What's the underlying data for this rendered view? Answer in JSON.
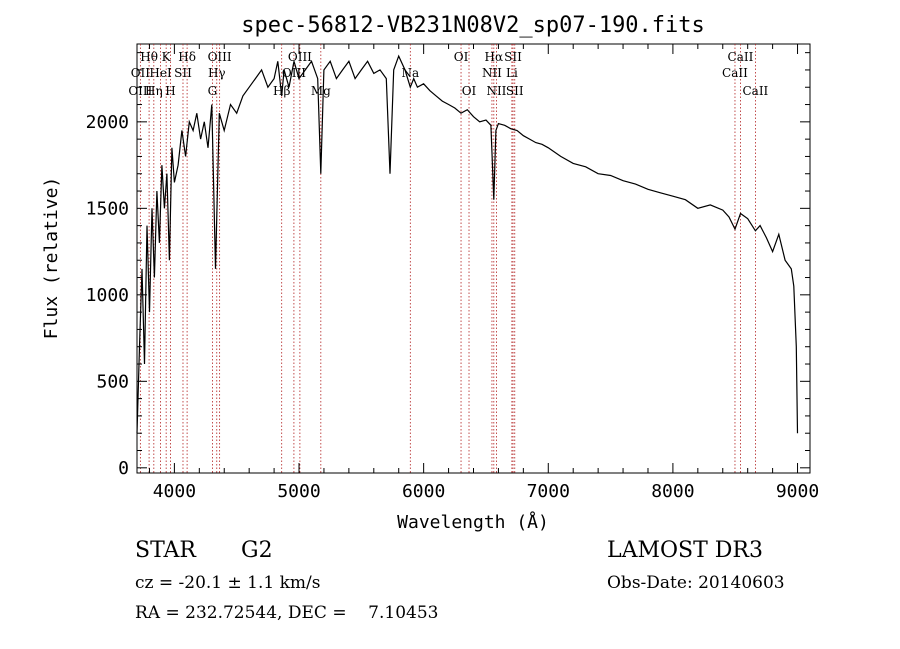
{
  "chart_data": {
    "type": "line",
    "title": "spec-56812-VB231N08V2_sp07-190.fits",
    "xlabel": "Wavelength (Å)",
    "ylabel": "Flux (relative)",
    "xlim": [
      3700,
      9100
    ],
    "ylim": [
      -30,
      2450
    ],
    "x_ticks": [
      4000,
      5000,
      6000,
      7000,
      8000,
      9000
    ],
    "y_ticks": [
      0,
      500,
      1000,
      1500,
      2000
    ],
    "grid": false,
    "series": [
      {
        "name": "flux",
        "x": [
          3700,
          3720,
          3740,
          3760,
          3780,
          3800,
          3820,
          3840,
          3860,
          3880,
          3900,
          3920,
          3940,
          3960,
          3980,
          4000,
          4030,
          4060,
          4090,
          4120,
          4150,
          4180,
          4210,
          4240,
          4270,
          4300,
          4330,
          4360,
          4400,
          4450,
          4500,
          4550,
          4600,
          4650,
          4700,
          4750,
          4800,
          4830,
          4861,
          4880,
          4920,
          4960,
          5000,
          5050,
          5100,
          5150,
          5175,
          5200,
          5250,
          5300,
          5350,
          5400,
          5450,
          5500,
          5550,
          5600,
          5650,
          5700,
          5730,
          5760,
          5800,
          5850,
          5893,
          5920,
          5950,
          6000,
          6050,
          6100,
          6150,
          6200,
          6250,
          6300,
          6350,
          6400,
          6450,
          6500,
          6540,
          6563,
          6580,
          6600,
          6650,
          6700,
          6750,
          6800,
          6850,
          6900,
          6950,
          7000,
          7100,
          7200,
          7300,
          7400,
          7500,
          7600,
          7700,
          7800,
          7900,
          8000,
          8100,
          8200,
          8300,
          8400,
          8450,
          8498,
          8542,
          8600,
          8662,
          8700,
          8750,
          8800,
          8850,
          8900,
          8950,
          8970,
          8990,
          9000
        ],
        "y": [
          200,
          700,
          1150,
          600,
          1400,
          900,
          1500,
          1100,
          1600,
          1300,
          1750,
          1500,
          1700,
          1200,
          1850,
          1650,
          1750,
          1950,
          1800,
          2000,
          1950,
          2050,
          1900,
          2000,
          1850,
          2100,
          1150,
          2050,
          1950,
          2100,
          2050,
          2150,
          2200,
          2250,
          2300,
          2200,
          2250,
          2350,
          2150,
          2300,
          2200,
          2350,
          2250,
          2300,
          2350,
          2250,
          1700,
          2300,
          2350,
          2250,
          2300,
          2350,
          2250,
          2300,
          2350,
          2280,
          2300,
          2250,
          1700,
          2300,
          2380,
          2300,
          2200,
          2250,
          2200,
          2220,
          2180,
          2150,
          2120,
          2100,
          2080,
          2050,
          2070,
          2030,
          2000,
          2010,
          1980,
          1550,
          1950,
          1990,
          1980,
          1960,
          1950,
          1920,
          1900,
          1880,
          1870,
          1850,
          1800,
          1760,
          1740,
          1700,
          1690,
          1660,
          1640,
          1610,
          1590,
          1570,
          1550,
          1500,
          1520,
          1490,
          1450,
          1380,
          1470,
          1440,
          1370,
          1400,
          1330,
          1250,
          1350,
          1200,
          1150,
          1050,
          700,
          200
        ]
      }
    ],
    "annotations": [
      {
        "label": "Hθ",
        "x": 3797,
        "row": 1
      },
      {
        "label": "OII",
        "x": 3727,
        "row": 2
      },
      {
        "label": "OIII",
        "x": 3727,
        "row": 3
      },
      {
        "label": "K",
        "x": 3934,
        "row": 1
      },
      {
        "label": "HeI",
        "x": 3889,
        "row": 2
      },
      {
        "label": "Hη",
        "x": 3835,
        "row": 3
      },
      {
        "label": "Hδ",
        "x": 4102,
        "row": 1
      },
      {
        "label": "SII",
        "x": 4069,
        "row": 2
      },
      {
        "label": "H",
        "x": 3969,
        "row": 3
      },
      {
        "label": "OIII",
        "x": 4363,
        "row": 1
      },
      {
        "label": "Hγ",
        "x": 4340,
        "row": 2
      },
      {
        "label": "G",
        "x": 4305,
        "row": 3
      },
      {
        "label": "OIII",
        "x": 5007,
        "row": 1
      },
      {
        "label": "OIII",
        "x": 4959,
        "row": 2
      },
      {
        "label": "Hβ",
        "x": 4861,
        "row": 3
      },
      {
        "label": "Mg",
        "x": 5175,
        "row": 3
      },
      {
        "label": "Na",
        "x": 5893,
        "row": 2
      },
      {
        "label": "OI",
        "x": 6300,
        "row": 1
      },
      {
        "label": "OI",
        "x": 6364,
        "row": 3
      },
      {
        "label": "Hα",
        "x": 6563,
        "row": 1
      },
      {
        "label": "NII",
        "x": 6548,
        "row": 2
      },
      {
        "label": "NII",
        "x": 6584,
        "row": 3
      },
      {
        "label": "SII",
        "x": 6717,
        "row": 1
      },
      {
        "label": "Li",
        "x": 6708,
        "row": 2
      },
      {
        "label": "SII",
        "x": 6731,
        "row": 3
      },
      {
        "label": "CaII",
        "x": 8542,
        "row": 1
      },
      {
        "label": "CaII",
        "x": 8498,
        "row": 2
      },
      {
        "label": "CaII",
        "x": 8662,
        "row": 3
      }
    ],
    "line_markers": [
      3727,
      3797,
      3835,
      3889,
      3934,
      3969,
      4069,
      4102,
      4305,
      4340,
      4363,
      4861,
      4959,
      5007,
      5175,
      5893,
      6300,
      6364,
      6548,
      6563,
      6584,
      6708,
      6717,
      6731,
      8498,
      8542,
      8662
    ],
    "colors": {
      "axes": "#000000",
      "spectrum": "#000000",
      "markers": "#b22222"
    }
  },
  "info": {
    "object_class": "STAR",
    "subclass": "G2",
    "survey": "LAMOST DR3",
    "redshift": "cz = -20.1 ± 1.1 km/s",
    "obs_date": "Obs-Date: 20140603",
    "coords": "RA = 232.72544, DEC =    7.10453"
  }
}
